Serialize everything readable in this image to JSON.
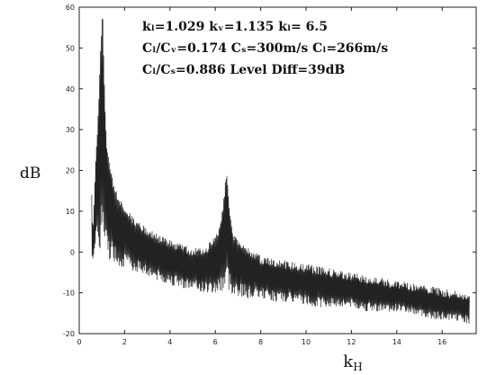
{
  "chart_data": {
    "type": "line",
    "title": "",
    "xlabel": "k_H",
    "ylabel": "dB",
    "xlim": [
      0,
      17.5
    ],
    "ylim": [
      -20,
      60
    ],
    "x_ticks": [
      0,
      2,
      4,
      6,
      8,
      10,
      12,
      14,
      16
    ],
    "y_ticks": [
      -20,
      -10,
      0,
      10,
      20,
      30,
      40,
      50,
      60
    ],
    "grid": false,
    "line_color": "#222222",
    "annotations": [
      "kₗ=1.029  kᵥ=1.135  kₗ= 6.5",
      "Cₗ/Cᵥ=0.174 Cₛ=300m/s  Cₗ=266m/s",
      "Cₗ/Cₛ=0.886      Level Diff=39dB"
    ],
    "series": [
      {
        "x": [
          0.55,
          0.6,
          0.65,
          0.7,
          0.75,
          0.8,
          0.85,
          0.9,
          0.95,
          1.0,
          1.029,
          1.06,
          1.1,
          1.15,
          1.2,
          1.3,
          1.4,
          1.5,
          1.7,
          2.0,
          2.5,
          3.0,
          3.5,
          4.0,
          4.5,
          5.0,
          5.5,
          6.0,
          6.2,
          6.35,
          6.45,
          6.5,
          6.55,
          6.65,
          6.8,
          7.0,
          7.5,
          8.0,
          9.0,
          10.0,
          11.0,
          12.0,
          13.0,
          14.0,
          15.0,
          16.0,
          17.2
        ],
        "y": [
          15,
          5,
          12,
          20,
          25,
          30,
          36,
          44,
          52,
          57,
          59,
          54,
          44,
          34,
          28,
          23,
          20,
          17,
          14,
          11,
          8,
          6,
          4,
          3,
          2,
          1,
          1,
          4,
          7,
          12,
          18,
          21,
          17,
          10,
          5,
          3,
          1,
          -1,
          -2,
          -3,
          -4,
          -5,
          -6,
          -7,
          -8,
          -9,
          -10
        ],
        "envelope_low": [
          -2,
          -3,
          -5,
          -6,
          -8,
          -9,
          -10,
          -11,
          -11,
          -12,
          -12,
          -13,
          -13,
          -14,
          -14,
          -14,
          -15,
          -15,
          -15,
          -16,
          -17,
          -17,
          -18
        ]
      }
    ]
  }
}
